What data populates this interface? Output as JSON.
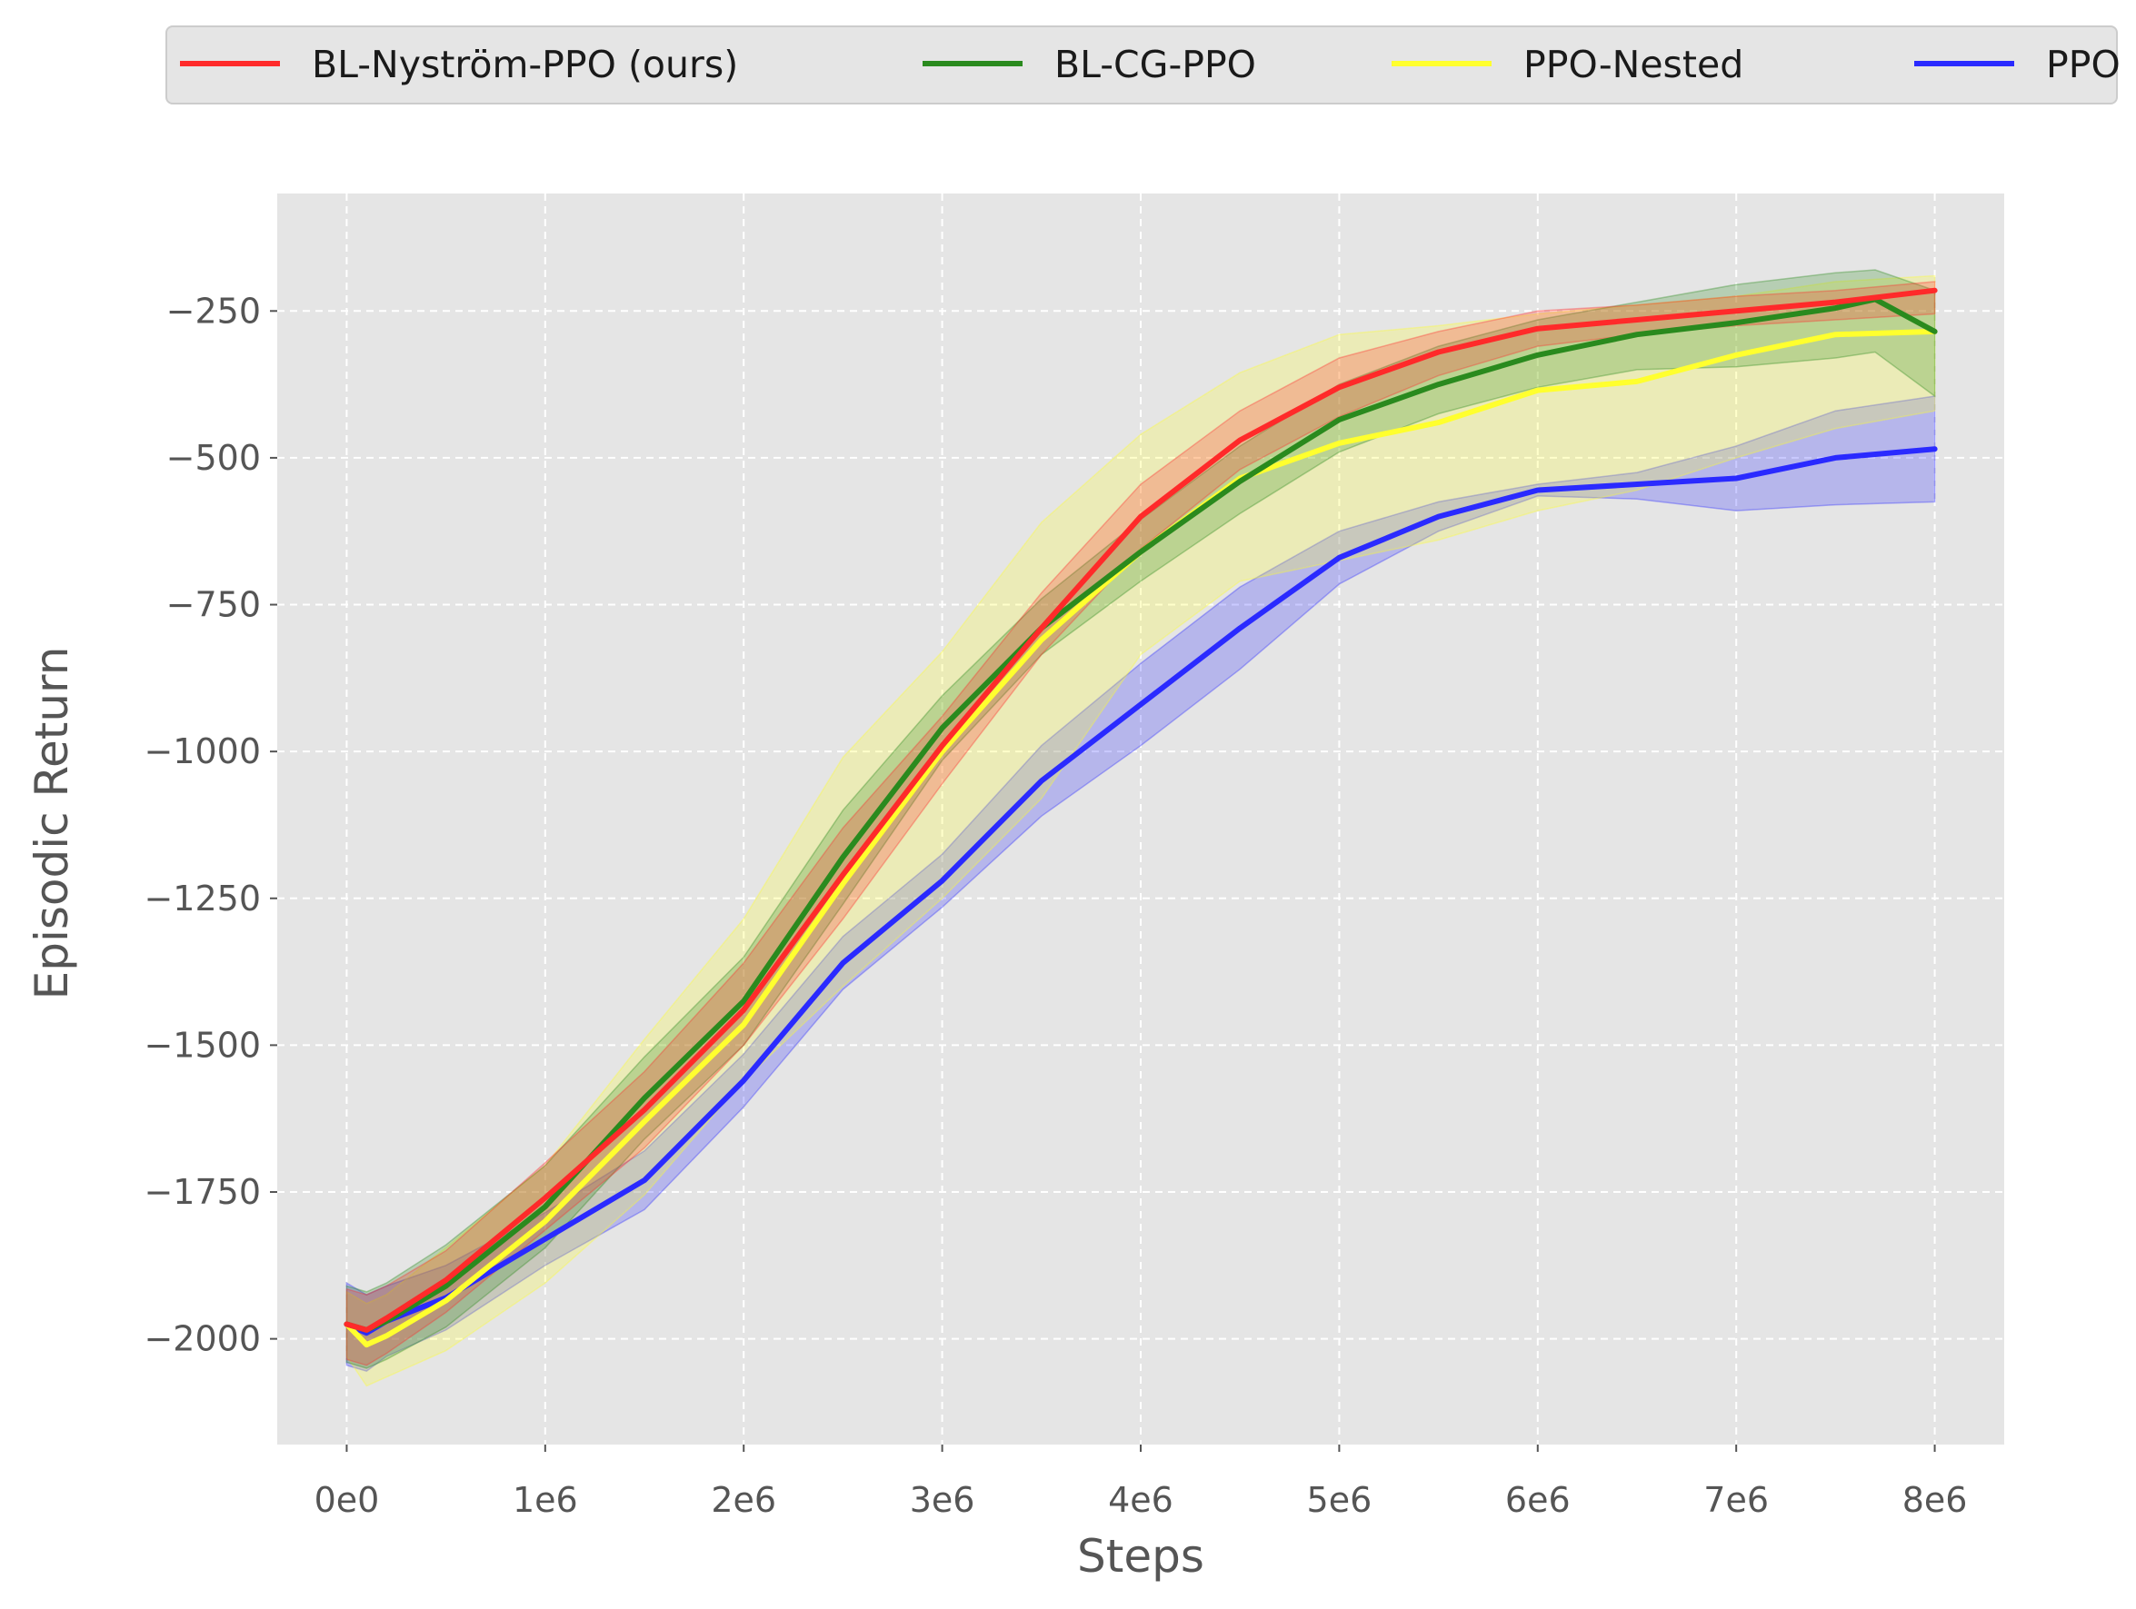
{
  "chart_data": {
    "type": "line",
    "xlabel": "Steps",
    "ylabel": "Episodic Return",
    "xlim": [
      -350000,
      8350000
    ],
    "ylim": [
      -2180,
      -50
    ],
    "xticks": [
      0,
      1000000,
      2000000,
      3000000,
      4000000,
      5000000,
      6000000,
      7000000,
      8000000
    ],
    "xtick_labels": [
      "0e0",
      "1e6",
      "2e6",
      "3e6",
      "4e6",
      "5e6",
      "6e6",
      "7e6",
      "8e6"
    ],
    "yticks": [
      -2000,
      -1750,
      -1500,
      -1250,
      -1000,
      -750,
      -500,
      -250
    ],
    "ytick_labels": [
      "−2000",
      "−1750",
      "−1500",
      "−1250",
      "−1000",
      "−750",
      "−500",
      "−250"
    ],
    "grid": true,
    "legend_position": "top",
    "background": "#e5e5e5",
    "series": [
      {
        "name": "BL-Nyström-PPO (ours)",
        "color": "#ff2a2a",
        "x": [
          0,
          100000,
          200000,
          500000,
          1000000,
          1500000,
          2000000,
          2500000,
          3000000,
          3500000,
          4000000,
          4500000,
          5000000,
          5500000,
          6000000,
          6500000,
          7000000,
          7500000,
          8000000
        ],
        "y": [
          -1975,
          -1985,
          -1965,
          -1900,
          -1760,
          -1610,
          -1440,
          -1210,
          -990,
          -790,
          -600,
          -470,
          -380,
          -320,
          -280,
          -265,
          -250,
          -235,
          -215
        ],
        "upper": [
          -1915,
          -1925,
          -1910,
          -1850,
          -1700,
          -1545,
          -1360,
          -1130,
          -940,
          -730,
          -545,
          -420,
          -330,
          -285,
          -250,
          -240,
          -225,
          -215,
          -200
        ],
        "lower": [
          -2035,
          -2045,
          -2025,
          -1955,
          -1815,
          -1675,
          -1500,
          -1285,
          -1055,
          -835,
          -655,
          -520,
          -430,
          -360,
          -310,
          -290,
          -275,
          -265,
          -255
        ]
      },
      {
        "name": "BL-CG-PPO",
        "color": "#2a8a1e",
        "x": [
          0,
          100000,
          200000,
          500000,
          1000000,
          1500000,
          2000000,
          2500000,
          3000000,
          3500000,
          4000000,
          4500000,
          5000000,
          5500000,
          6000000,
          6500000,
          7000000,
          7500000,
          7700000,
          8000000
        ],
        "y": [
          -1975,
          -1985,
          -1970,
          -1910,
          -1775,
          -1590,
          -1425,
          -1180,
          -960,
          -790,
          -660,
          -540,
          -435,
          -375,
          -325,
          -290,
          -270,
          -245,
          -230,
          -285
        ],
        "upper": [
          -1910,
          -1920,
          -1905,
          -1840,
          -1705,
          -1520,
          -1350,
          -1100,
          -905,
          -740,
          -605,
          -480,
          -375,
          -310,
          -265,
          -235,
          -205,
          -185,
          -180,
          -215
        ],
        "lower": [
          -2040,
          -2050,
          -2035,
          -1980,
          -1845,
          -1660,
          -1500,
          -1260,
          -1015,
          -835,
          -710,
          -595,
          -490,
          -425,
          -380,
          -350,
          -345,
          -330,
          -320,
          -395
        ]
      },
      {
        "name": "PPO-Nested",
        "color": "#ffff2e",
        "x": [
          0,
          100000,
          200000,
          500000,
          1000000,
          1500000,
          2000000,
          2500000,
          3000000,
          3500000,
          4000000,
          4500000,
          5000000,
          5500000,
          6000000,
          6500000,
          7000000,
          7500000,
          8000000
        ],
        "y": [
          -1975,
          -2010,
          -1995,
          -1935,
          -1800,
          -1630,
          -1465,
          -1225,
          -1000,
          -810,
          -660,
          -535,
          -475,
          -440,
          -385,
          -370,
          -325,
          -290,
          -285
        ],
        "upper": [
          -1920,
          -1940,
          -1925,
          -1845,
          -1705,
          -1490,
          -1285,
          -1010,
          -830,
          -610,
          -460,
          -355,
          -290,
          -275,
          -255,
          -240,
          -225,
          -200,
          -190
        ],
        "lower": [
          -2030,
          -2080,
          -2065,
          -2020,
          -1905,
          -1755,
          -1560,
          -1400,
          -1250,
          -1080,
          -835,
          -710,
          -675,
          -640,
          -590,
          -555,
          -500,
          -450,
          -420
        ]
      },
      {
        "name": "PPO",
        "color": "#2a2aff",
        "x": [
          0,
          100000,
          200000,
          500000,
          1000000,
          1500000,
          2000000,
          2500000,
          3000000,
          3500000,
          4000000,
          4500000,
          5000000,
          5500000,
          6000000,
          6500000,
          7000000,
          7500000,
          8000000
        ],
        "y": [
          -1975,
          -1990,
          -1970,
          -1930,
          -1830,
          -1730,
          -1560,
          -1360,
          -1220,
          -1050,
          -920,
          -790,
          -670,
          -600,
          -555,
          -545,
          -535,
          -500,
          -485
        ],
        "upper": [
          -1905,
          -1925,
          -1910,
          -1875,
          -1785,
          -1680,
          -1515,
          -1315,
          -1175,
          -990,
          -850,
          -720,
          -625,
          -575,
          -545,
          -525,
          -480,
          -420,
          -395
        ],
        "lower": [
          -2045,
          -2055,
          -2030,
          -1985,
          -1875,
          -1780,
          -1605,
          -1405,
          -1265,
          -1110,
          -990,
          -860,
          -715,
          -625,
          -565,
          -570,
          -590,
          -580,
          -575
        ]
      }
    ]
  }
}
